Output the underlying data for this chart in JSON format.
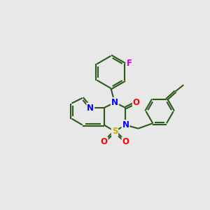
{
  "bg": "#e8e8e8",
  "bond_color": "#2d5a1b",
  "bond_width": 1.5,
  "atom_colors": {
    "N": "#0000ff",
    "O": "#ff0000",
    "S": "#ccaa00",
    "F": "#cc00cc",
    "C": "#2d5a1b"
  },
  "font_size": 8.5,
  "fig_size": [
    3.0,
    3.0
  ],
  "dpi": 100
}
